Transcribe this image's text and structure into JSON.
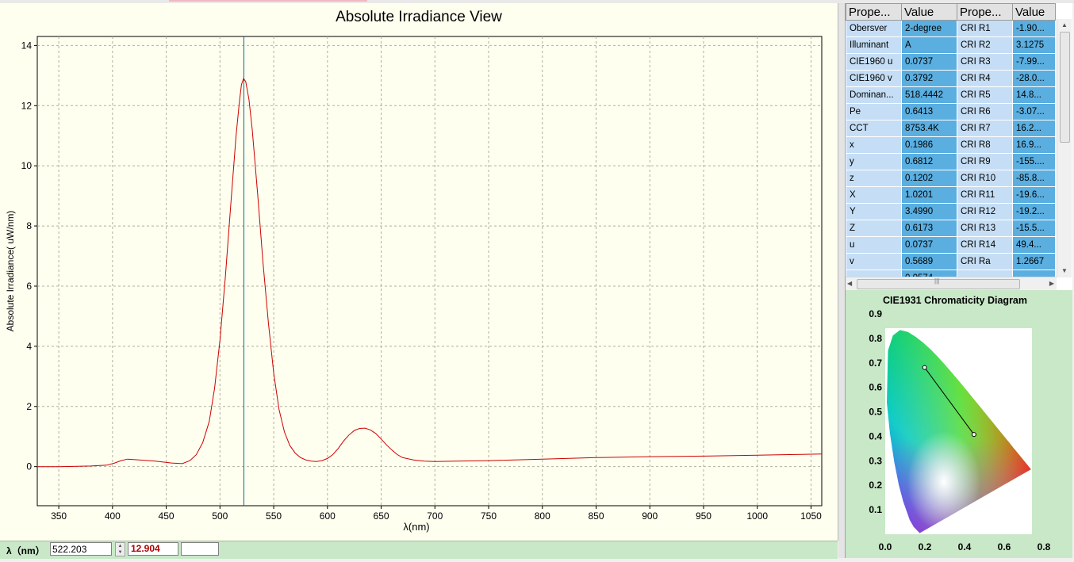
{
  "chart_data": {
    "type": "line",
    "title": "Absolute Irradiance View",
    "xlabel": "λ(nm)",
    "ylabel": "Absolute Irradiance( uW/nm)",
    "xlim": [
      330,
      1060
    ],
    "ylim": [
      -1.3,
      14.3
    ],
    "x_ticks": [
      350,
      400,
      450,
      500,
      550,
      600,
      650,
      700,
      750,
      800,
      850,
      900,
      950,
      1000,
      1050
    ],
    "y_ticks": [
      0,
      2,
      4,
      6,
      8,
      10,
      12,
      14
    ],
    "grid": true,
    "line_color": "#cc0000",
    "cursor_x": 522.203,
    "series": [
      {
        "x": [
          330,
          350,
          380,
          395,
          402,
          408,
          414,
          425,
          440,
          455,
          465,
          472,
          478,
          484,
          490,
          495,
          500,
          505,
          510,
          515,
          518,
          520,
          522,
          524,
          527,
          530,
          535,
          540,
          545,
          550,
          555,
          560,
          565,
          570,
          575,
          580,
          585,
          590,
          595,
          600,
          605,
          610,
          615,
          620,
          625,
          630,
          635,
          640,
          645,
          650,
          655,
          660,
          665,
          670,
          680,
          690,
          700,
          720,
          750,
          800,
          850,
          900,
          950,
          1000,
          1030,
          1060
        ],
        "y": [
          0,
          0,
          0.02,
          0.05,
          0.12,
          0.2,
          0.25,
          0.22,
          0.18,
          0.12,
          0.1,
          0.2,
          0.4,
          0.8,
          1.5,
          2.6,
          4.2,
          6.3,
          8.7,
          11.0,
          12.1,
          12.7,
          12.9,
          12.8,
          12.2,
          11.2,
          9.1,
          6.8,
          4.8,
          3.1,
          1.9,
          1.15,
          0.7,
          0.45,
          0.3,
          0.22,
          0.18,
          0.17,
          0.2,
          0.27,
          0.4,
          0.6,
          0.85,
          1.05,
          1.2,
          1.27,
          1.28,
          1.22,
          1.1,
          0.92,
          0.72,
          0.55,
          0.4,
          0.3,
          0.22,
          0.18,
          0.17,
          0.18,
          0.2,
          0.25,
          0.3,
          0.33,
          0.35,
          0.38,
          0.4,
          0.42
        ]
      }
    ]
  },
  "status_bar": {
    "wavelength_label": "λ（nm）",
    "wavelength_value": "522.203",
    "irradiance_value": "12.904"
  },
  "property_table": {
    "headers": [
      "Prope...",
      "Value",
      "Prope...",
      "Value"
    ],
    "rows": [
      [
        "Obersver",
        "2-degree",
        "CRI R1",
        "-1.90..."
      ],
      [
        "Illuminant",
        "A",
        "CRI R2",
        "3.1275"
      ],
      [
        "CIE1960 u",
        "0.0737",
        "CRI R3",
        "-7.99..."
      ],
      [
        "CIE1960 v",
        "0.3792",
        "CRI R4",
        "-28.0..."
      ],
      [
        "Dominan...",
        "518.4442",
        "CRI R5",
        "14.8..."
      ],
      [
        "Pe",
        "0.6413",
        "CRI R6",
        "-3.07..."
      ],
      [
        "CCT",
        "8753.4K",
        "CRI R7",
        "16.2..."
      ],
      [
        "x",
        "0.1986",
        "CRI R8",
        "16.9..."
      ],
      [
        "y",
        "0.6812",
        "CRI R9",
        "-155...."
      ],
      [
        "z",
        "0.1202",
        "CRI R10",
        "-85.8..."
      ],
      [
        "X",
        "1.0201",
        "CRI R11",
        "-19.6..."
      ],
      [
        "Y",
        "3.4990",
        "CRI R12",
        "-19.2..."
      ],
      [
        "Z",
        "0.6173",
        "CRI R13",
        "-15.5..."
      ],
      [
        "u",
        "0.0737",
        "CRI R14",
        "49.4..."
      ],
      [
        "v",
        "0.5689",
        "CRI Ra",
        "1.2667"
      ],
      [
        "",
        "0.0574",
        "",
        ""
      ]
    ]
  },
  "cie_diagram": {
    "title": "CIE1931 Chromaticity Diagram",
    "x_ticks": [
      "0.0",
      "0.2",
      "0.4",
      "0.6",
      "0.8"
    ],
    "y_ticks": [
      "0.1",
      "0.2",
      "0.3",
      "0.4",
      "0.5",
      "0.6",
      "0.7",
      "0.8",
      "0.9"
    ],
    "sample_point": {
      "x": 0.1986,
      "y": 0.6812
    },
    "white_point": {
      "x": 0.4476,
      "y": 0.4074
    }
  }
}
